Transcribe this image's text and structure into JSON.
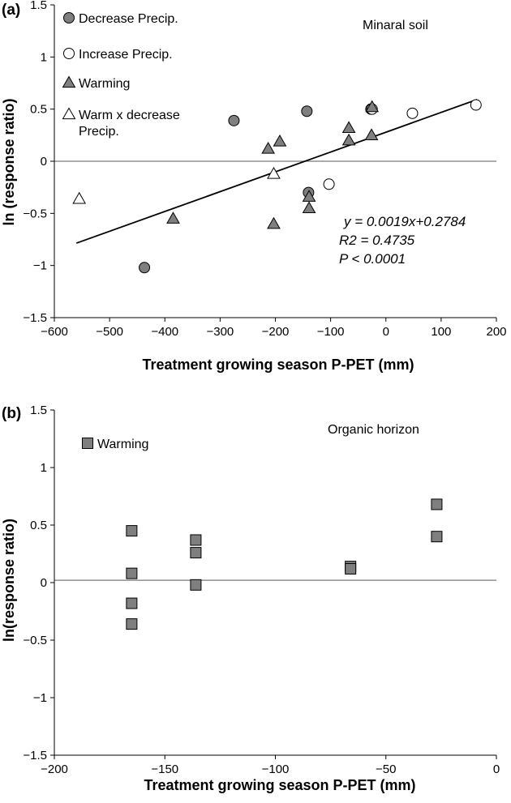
{
  "chart_data": [
    {
      "type": "scatter",
      "panel_label": "(a)",
      "annotation": "Minaral soil",
      "xlabel": "Treatment growing season P-PET (mm)",
      "ylabel": "ln (response ratio)",
      "xlim": [
        -600,
        200
      ],
      "ylim": [
        -1.5,
        1.5
      ],
      "x_ticks": [
        -600,
        -500,
        -400,
        -300,
        -200,
        -100,
        0,
        100,
        200
      ],
      "y_ticks": [
        -1.5,
        -1,
        -0.5,
        0,
        0.5,
        1,
        1.5
      ],
      "x_tick_labels": [
        "−600",
        "−500",
        "−400",
        "−300",
        "−200",
        "−100",
        "0",
        "100",
        "200"
      ],
      "y_tick_labels": [
        "−1.5",
        "−1",
        "−0.5",
        "0",
        "0.5",
        "1",
        "1.5"
      ],
      "reference_line_y": 0,
      "series": [
        {
          "name": "Decrease Precip.",
          "marker": "circle",
          "fill": "#7f7f7f",
          "points": [
            [
              -437,
              -1.02
            ],
            [
              -275,
              0.39
            ],
            [
              -143,
              0.48
            ],
            [
              -140,
              -0.3
            ],
            [
              -27,
              0.5
            ]
          ]
        },
        {
          "name": "Increase Precip.",
          "marker": "circle",
          "fill": "#ffffff",
          "points": [
            [
              -103,
              -0.22
            ],
            [
              -25,
              0.5
            ],
            [
              48,
              0.46
            ],
            [
              163,
              0.54
            ]
          ]
        },
        {
          "name": "Warming",
          "marker": "triangle",
          "fill": "#7f7f7f",
          "points": [
            [
              -385,
              -0.55
            ],
            [
              -213,
              0.12
            ],
            [
              -192,
              0.19
            ],
            [
              -203,
              -0.6
            ],
            [
              -139,
              -0.34
            ],
            [
              -139,
              -0.45
            ],
            [
              -67,
              0.32
            ],
            [
              -67,
              0.2
            ],
            [
              -26,
              0.25
            ],
            [
              -25,
              0.52
            ]
          ]
        },
        {
          "name": "Warm x decrease Precip.",
          "legend_lines": [
            "Warm x decrease",
            "Precip."
          ],
          "marker": "triangle",
          "fill": "#ffffff",
          "points": [
            [
              -555,
              -0.36
            ],
            [
              -203,
              -0.12
            ]
          ]
        }
      ],
      "fit": {
        "x_range": [
          -560,
          165
        ],
        "slope": 0.0019,
        "intercept": 0.2784,
        "equation_lines": [
          "y = 0.0019x+0.2784",
          "R2 = 0.4735",
          "P < 0.0001"
        ]
      }
    },
    {
      "type": "scatter",
      "panel_label": "(b)",
      "annotation": "Organic horizon",
      "xlabel": "Treatment growing season P-PET (mm)",
      "ylabel": "ln(response ratio)",
      "xlim": [
        -200,
        0
      ],
      "ylim": [
        -1.5,
        1.5
      ],
      "x_ticks": [
        -200,
        -150,
        -100,
        -50,
        0
      ],
      "y_ticks": [
        -1.5,
        -1,
        -0.5,
        0,
        0.5,
        1,
        1.5
      ],
      "x_tick_labels": [
        "−200",
        "−150",
        "−100",
        "−50",
        "0"
      ],
      "y_tick_labels": [
        "−1.5",
        "−1",
        "−0.5",
        "0",
        "0.5",
        "1",
        "1.5"
      ],
      "reference_line_y": 0.02,
      "series": [
        {
          "name": "Warming",
          "marker": "square",
          "fill": "#7f7f7f",
          "points": [
            [
              -165,
              0.45
            ],
            [
              -165,
              0.08
            ],
            [
              -165,
              -0.18
            ],
            [
              -165,
              -0.36
            ],
            [
              -136,
              0.37
            ],
            [
              -136,
              0.26
            ],
            [
              -136,
              -0.02
            ],
            [
              -66,
              0.14
            ],
            [
              -66,
              0.12
            ],
            [
              -27,
              0.68
            ],
            [
              -27,
              0.4
            ]
          ]
        }
      ]
    }
  ]
}
